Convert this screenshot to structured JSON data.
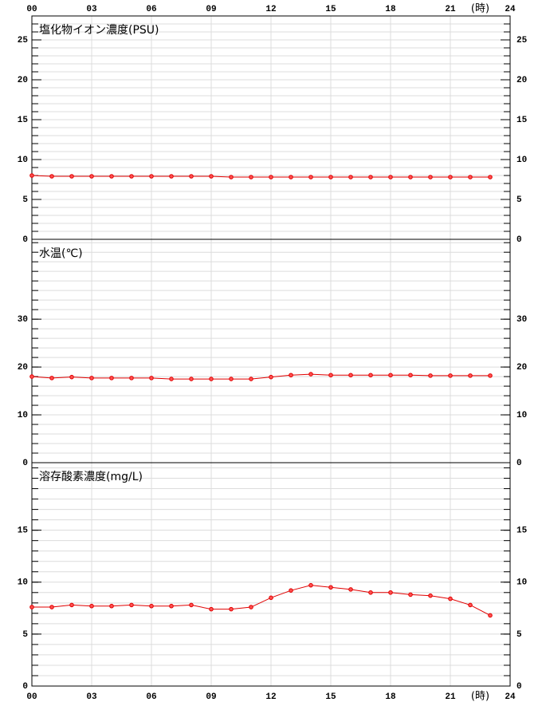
{
  "chart_data": [
    {
      "type": "line",
      "title": "塩化物イオン濃度(PSU)",
      "xlabel": "(時)",
      "xtick_labels": "top",
      "x": [
        0,
        1,
        2,
        3,
        4,
        5,
        6,
        7,
        8,
        9,
        10,
        11,
        12,
        13,
        14,
        15,
        16,
        17,
        18,
        19,
        20,
        21,
        22,
        23
      ],
      "values": [
        8.0,
        7.9,
        7.9,
        7.9,
        7.9,
        7.9,
        7.9,
        7.9,
        7.9,
        7.9,
        7.8,
        7.8,
        7.8,
        7.8,
        7.8,
        7.8,
        7.8,
        7.8,
        7.8,
        7.8,
        7.8,
        7.8,
        7.8,
        7.8
      ],
      "color": "#e00000",
      "xlim": [
        0,
        24
      ],
      "xticks": [
        {
          "value": 0,
          "label": "00"
        },
        {
          "value": 3,
          "label": "03"
        },
        {
          "value": 6,
          "label": "06"
        },
        {
          "value": 9,
          "label": "09"
        },
        12,
        15,
        18,
        21,
        24
      ],
      "ylim": [
        0,
        28
      ],
      "yticks": [
        0,
        5,
        10,
        15,
        20,
        25
      ],
      "minor_yticks": [
        0,
        1,
        2,
        3,
        4,
        5,
        6,
        7,
        8,
        9,
        10,
        11,
        12,
        13,
        14,
        15,
        16,
        17,
        18,
        19,
        20,
        21,
        22,
        23,
        24,
        25,
        26,
        27,
        28
      ],
      "grid": true
    },
    {
      "type": "line",
      "title": "水温(℃)",
      "xtick_labels": "none",
      "x": [
        0,
        1,
        2,
        3,
        4,
        5,
        6,
        7,
        8,
        9,
        10,
        11,
        12,
        13,
        14,
        15,
        16,
        17,
        18,
        19,
        20,
        21,
        22,
        23
      ],
      "values": [
        18.0,
        17.7,
        17.9,
        17.7,
        17.7,
        17.7,
        17.7,
        17.5,
        17.5,
        17.5,
        17.5,
        17.5,
        17.9,
        18.3,
        18.5,
        18.3,
        18.3,
        18.3,
        18.3,
        18.3,
        18.2,
        18.2,
        18.2,
        18.2
      ],
      "color": "#e00000",
      "xlim": [
        0,
        24
      ],
      "xticks": [
        {
          "value": 0,
          "label": "00"
        },
        {
          "value": 3,
          "label": "03"
        },
        {
          "value": 6,
          "label": "06"
        },
        {
          "value": 9,
          "label": "09"
        },
        12,
        15,
        18,
        21,
        24
      ],
      "ylim": [
        0,
        46.7
      ],
      "yticks": [
        0,
        10,
        20,
        30
      ],
      "minor_yticks": [
        0,
        2,
        4,
        6,
        8,
        10,
        12,
        14,
        16,
        18,
        20,
        22,
        24,
        26,
        28,
        30,
        32,
        34,
        36,
        38,
        40,
        42,
        44,
        46
      ],
      "grid": true
    },
    {
      "type": "line",
      "title": "溶存酸素濃度(mg/L)",
      "xlabel": "(時)",
      "xtick_labels": "bottom",
      "x": [
        0,
        1,
        2,
        3,
        4,
        5,
        6,
        7,
        8,
        9,
        10,
        11,
        12,
        13,
        14,
        15,
        16,
        17,
        18,
        19,
        20,
        21,
        22,
        23
      ],
      "values": [
        7.6,
        7.6,
        7.8,
        7.7,
        7.7,
        7.8,
        7.7,
        7.7,
        7.8,
        7.4,
        7.4,
        7.6,
        8.5,
        9.2,
        9.7,
        9.5,
        9.3,
        9.0,
        9.0,
        8.8,
        8.7,
        8.4,
        7.8,
        6.8
      ],
      "color": "#e00000",
      "xlim": [
        0,
        24
      ],
      "xticks": [
        {
          "value": 0,
          "label": "00"
        },
        {
          "value": 3,
          "label": "03"
        },
        {
          "value": 6,
          "label": "06"
        },
        {
          "value": 9,
          "label": "09"
        },
        12,
        15,
        18,
        21,
        24
      ],
      "ylim": [
        0,
        21.5
      ],
      "yticks": [
        0,
        5,
        10,
        15
      ],
      "minor_yticks": [
        0,
        1,
        2,
        3,
        4,
        5,
        6,
        7,
        8,
        9,
        10,
        11,
        12,
        13,
        14,
        15,
        16,
        17,
        18,
        19,
        20,
        21
      ],
      "grid": true
    }
  ]
}
